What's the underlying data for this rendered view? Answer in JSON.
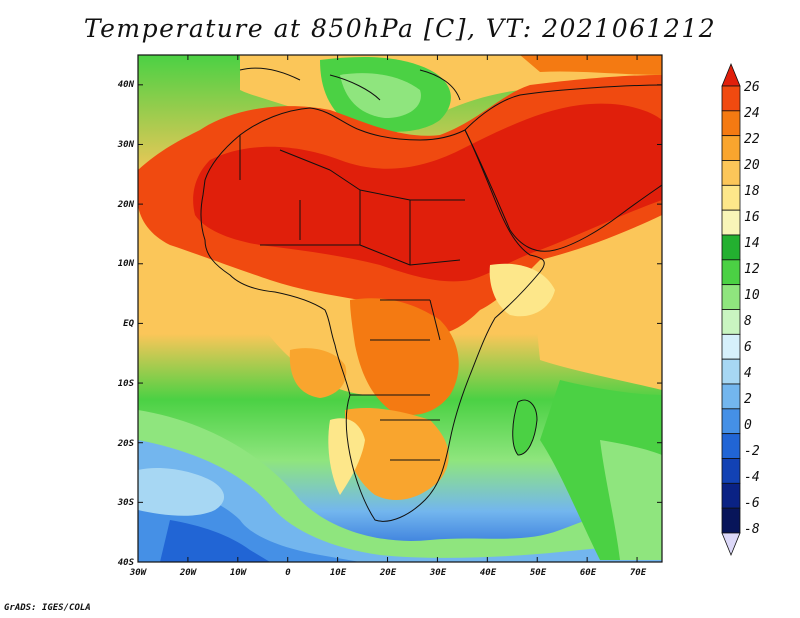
{
  "title": "Temperature at 850hPa [C], VT: 2021061212",
  "credit": "GrADS: IGES/COLA",
  "map": {
    "region": "Africa",
    "variable": "850hPa temperature",
    "units": "C",
    "lon_range": [
      -30,
      75
    ],
    "lat_range": [
      -40,
      45
    ],
    "lon_labels": [
      "30W",
      "20W",
      "10W",
      "0",
      "10E",
      "20E",
      "30E",
      "40E",
      "50E",
      "60E",
      "70E"
    ],
    "lat_labels": [
      "40N",
      "30N",
      "20N",
      "10N",
      "EQ",
      "10S",
      "20S",
      "30S",
      "40S"
    ]
  },
  "colorbar": {
    "labels": [
      "26",
      "24",
      "22",
      "20",
      "18",
      "16",
      "14",
      "12",
      "10",
      "8",
      "6",
      "4",
      "2",
      "0",
      "-2",
      "-4",
      "-6",
      "-8"
    ],
    "colors": [
      "#e01f0b",
      "#f04a10",
      "#f47a12",
      "#f9a52e",
      "#fbc659",
      "#fde78a",
      "#f8f5b8",
      "#23b030",
      "#4bd144",
      "#8fe57e",
      "#c9f5c1",
      "#d6f0fb",
      "#a7d7f3",
      "#73b6ee",
      "#4590e6",
      "#2165d5",
      "#1242b4",
      "#0a2284",
      "#08155a",
      "#dcd8f8"
    ]
  }
}
